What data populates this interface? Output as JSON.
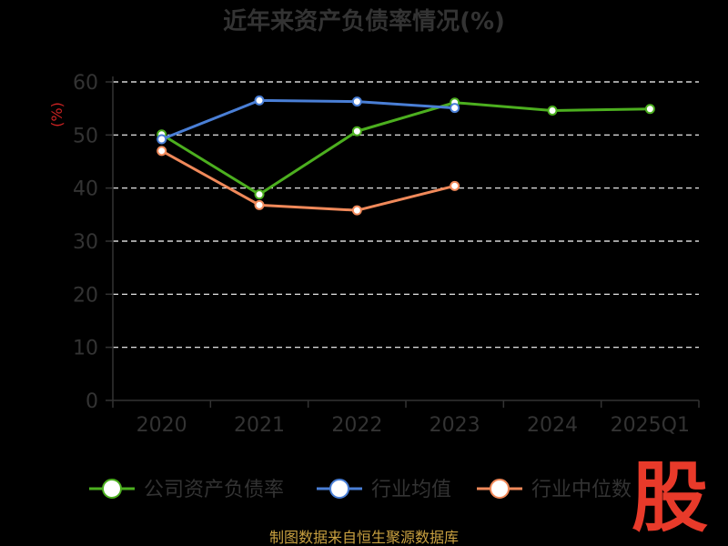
{
  "chart_data": {
    "type": "line",
    "title": "近年来资产负债率情况(%)",
    "ylabel": "(%)",
    "xlabel": "",
    "categories": [
      "2020",
      "2021",
      "2022",
      "2023",
      "2024",
      "2025Q1"
    ],
    "ylim": [
      0,
      60
    ],
    "yticks": [
      0,
      10,
      20,
      30,
      40,
      50,
      60
    ],
    "grid": true,
    "legend_position": "bottom",
    "series": [
      {
        "name": "公司资产负债率",
        "color": "#4caf1f",
        "values": [
          50.1,
          38.8,
          50.7,
          56.1,
          54.6,
          54.9
        ]
      },
      {
        "name": "行业均值",
        "color": "#4a7fd6",
        "values": [
          49.2,
          56.5,
          56.3,
          55.1,
          null,
          null
        ]
      },
      {
        "name": "行业中位数",
        "color": "#f0895a",
        "values": [
          47.0,
          36.8,
          35.8,
          40.4,
          null,
          null
        ]
      }
    ]
  },
  "source": "制图数据来自恒生聚源数据库",
  "stamp": "股"
}
